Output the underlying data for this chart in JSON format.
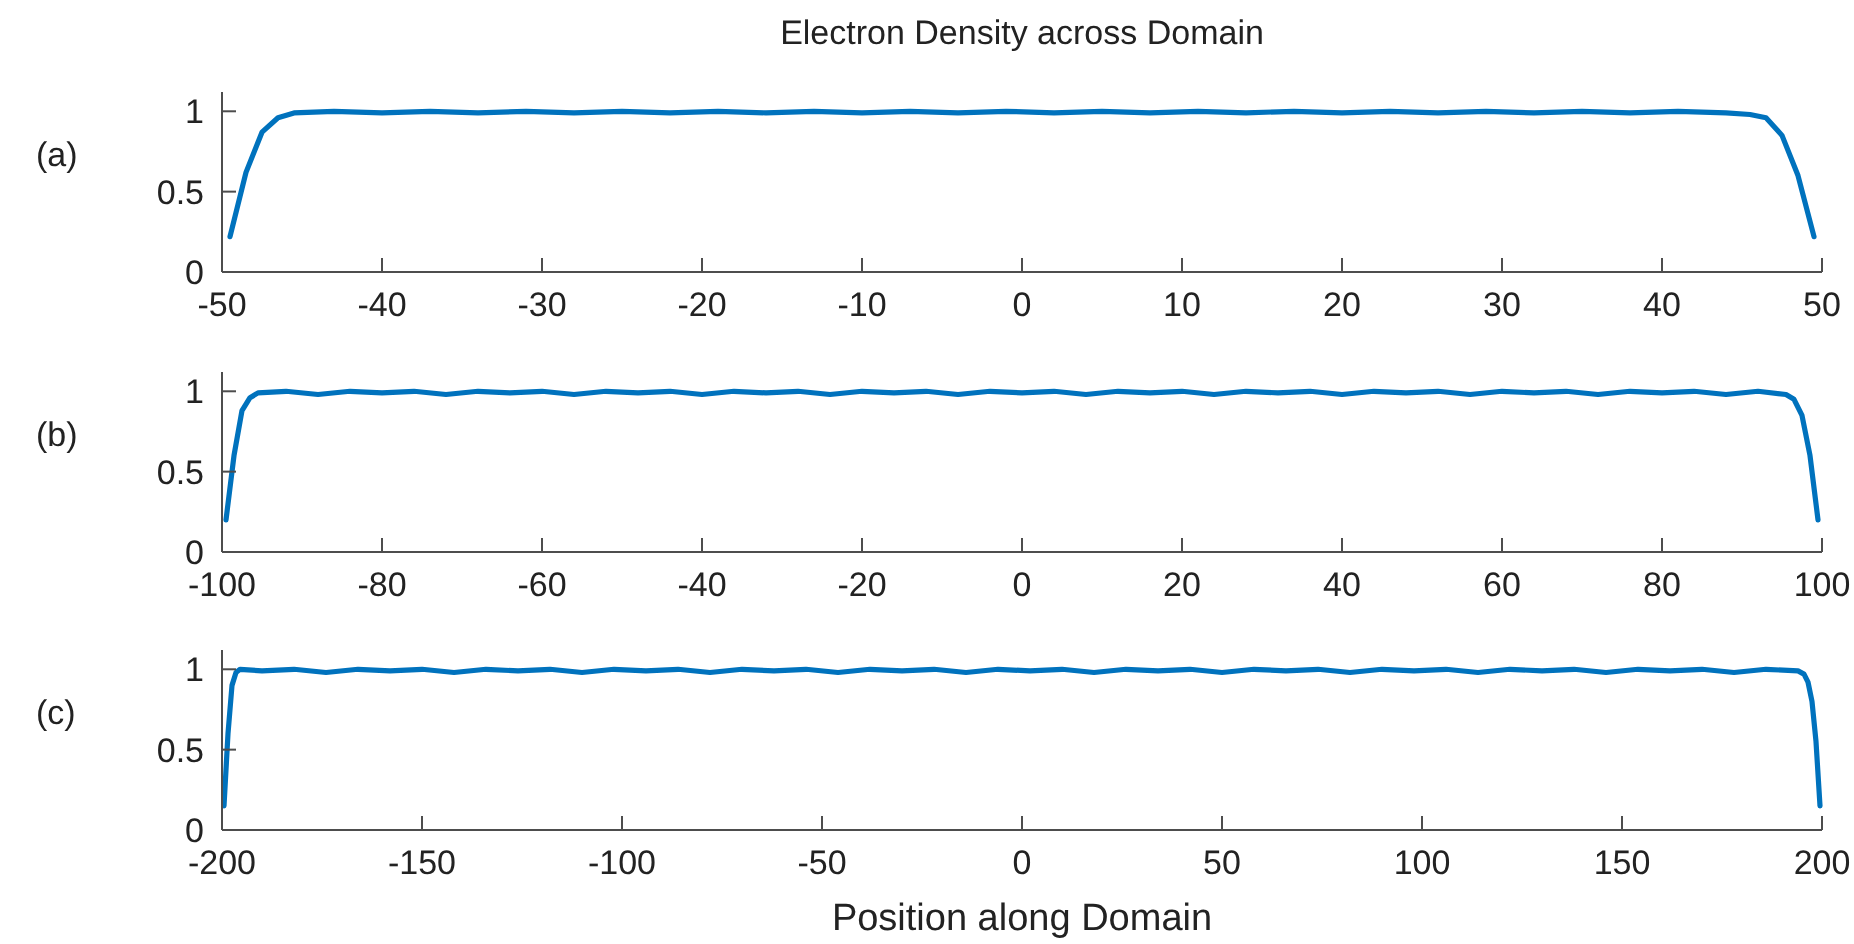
{
  "chart_data": [
    {
      "type": "line",
      "title": "Electron Density across Domain",
      "annotations": [
        "(a)"
      ],
      "x": [
        -49.5,
        -48.5,
        -47.5,
        -46.5,
        -45.5,
        -43,
        -40,
        -37,
        -34,
        -31,
        -28,
        -25,
        -22,
        -19,
        -16,
        -13,
        -10,
        -7,
        -4,
        -1,
        2,
        5,
        8,
        11,
        14,
        17,
        20,
        23,
        26,
        29,
        32,
        35,
        38,
        41,
        44,
        45.5,
        46.5,
        47.5,
        48.5,
        49.5
      ],
      "series": [
        {
          "color": "#0072bd",
          "values": [
            0.22,
            0.62,
            0.87,
            0.96,
            0.99,
            1,
            0.99,
            1,
            0.99,
            1,
            0.99,
            1,
            0.99,
            1,
            0.99,
            1,
            0.99,
            1,
            0.99,
            1,
            0.99,
            1,
            0.99,
            1,
            0.99,
            1,
            0.99,
            1,
            0.99,
            1,
            0.99,
            1,
            0.99,
            1,
            0.99,
            0.98,
            0.96,
            0.85,
            0.6,
            0.22
          ]
        }
      ],
      "xlim": [
        -50,
        50
      ],
      "xticks": [
        -50,
        -40,
        -30,
        -20,
        -10,
        0,
        10,
        20,
        30,
        40,
        50
      ],
      "ylim": [
        0,
        1.12
      ],
      "yticks": [
        0,
        0.5,
        1
      ],
      "grid": false,
      "line_style": "solid",
      "marker": "none"
    },
    {
      "type": "line",
      "annotations": [
        "(b)"
      ],
      "x": [
        -99.5,
        -98.5,
        -97.5,
        -96.5,
        -95.5,
        -92,
        -88,
        -84,
        -80,
        -76,
        -72,
        -68,
        -64,
        -60,
        -56,
        -52,
        -48,
        -44,
        -40,
        -36,
        -32,
        -28,
        -24,
        -20,
        -16,
        -12,
        -8,
        -4,
        0,
        4,
        8,
        12,
        16,
        20,
        24,
        28,
        32,
        36,
        40,
        44,
        48,
        52,
        56,
        60,
        64,
        68,
        72,
        76,
        80,
        84,
        88,
        92,
        95.5,
        96.5,
        97.5,
        98.5,
        99.5
      ],
      "series": [
        {
          "color": "#0072bd",
          "values": [
            0.2,
            0.6,
            0.88,
            0.96,
            0.99,
            1,
            0.98,
            1,
            0.99,
            1,
            0.98,
            1,
            0.99,
            1,
            0.98,
            1,
            0.99,
            1,
            0.98,
            1,
            0.99,
            1,
            0.98,
            1,
            0.99,
            1,
            0.98,
            1,
            0.99,
            1,
            0.98,
            1,
            0.99,
            1,
            0.98,
            1,
            0.99,
            1,
            0.98,
            1,
            0.99,
            1,
            0.98,
            1,
            0.99,
            1,
            0.98,
            1,
            0.99,
            1,
            0.98,
            1,
            0.98,
            0.95,
            0.85,
            0.6,
            0.2
          ]
        }
      ],
      "xlim": [
        -100,
        100
      ],
      "xticks": [
        -100,
        -80,
        -60,
        -40,
        -20,
        0,
        20,
        40,
        60,
        80,
        100
      ],
      "ylim": [
        0,
        1.12
      ],
      "yticks": [
        0,
        0.5,
        1
      ],
      "grid": false,
      "line_style": "solid",
      "marker": "none"
    },
    {
      "type": "line",
      "xlabel": "Position along Domain",
      "annotations": [
        "(c)"
      ],
      "x": [
        -199.5,
        -198.5,
        -197.5,
        -196.5,
        -195.5,
        -190,
        -182,
        -174,
        -166,
        -158,
        -150,
        -142,
        -134,
        -126,
        -118,
        -110,
        -102,
        -94,
        -86,
        -78,
        -70,
        -62,
        -54,
        -46,
        -38,
        -30,
        -22,
        -14,
        -6,
        2,
        10,
        18,
        26,
        34,
        42,
        50,
        58,
        66,
        74,
        82,
        90,
        98,
        106,
        114,
        122,
        130,
        138,
        146,
        154,
        162,
        170,
        178,
        186,
        194,
        195.5,
        196.5,
        197.5,
        198.5,
        199.5
      ],
      "series": [
        {
          "color": "#0072bd",
          "values": [
            0.15,
            0.6,
            0.9,
            0.98,
            1,
            0.99,
            1,
            0.98,
            1,
            0.99,
            1,
            0.98,
            1,
            0.99,
            1,
            0.98,
            1,
            0.99,
            1,
            0.98,
            1,
            0.99,
            1,
            0.98,
            1,
            0.99,
            1,
            0.98,
            1,
            0.99,
            1,
            0.98,
            1,
            0.99,
            1,
            0.98,
            1,
            0.99,
            1,
            0.98,
            1,
            0.99,
            1,
            0.98,
            1,
            0.99,
            1,
            0.98,
            1,
            0.99,
            1,
            0.98,
            1,
            0.99,
            0.97,
            0.92,
            0.8,
            0.55,
            0.15
          ]
        }
      ],
      "xlim": [
        -200,
        200
      ],
      "xticks": [
        -200,
        -150,
        -100,
        -50,
        0,
        50,
        100,
        150,
        200
      ],
      "ylim": [
        0,
        1.12
      ],
      "yticks": [
        0,
        0.5,
        1
      ],
      "grid": false,
      "line_style": "solid",
      "marker": "none"
    }
  ]
}
